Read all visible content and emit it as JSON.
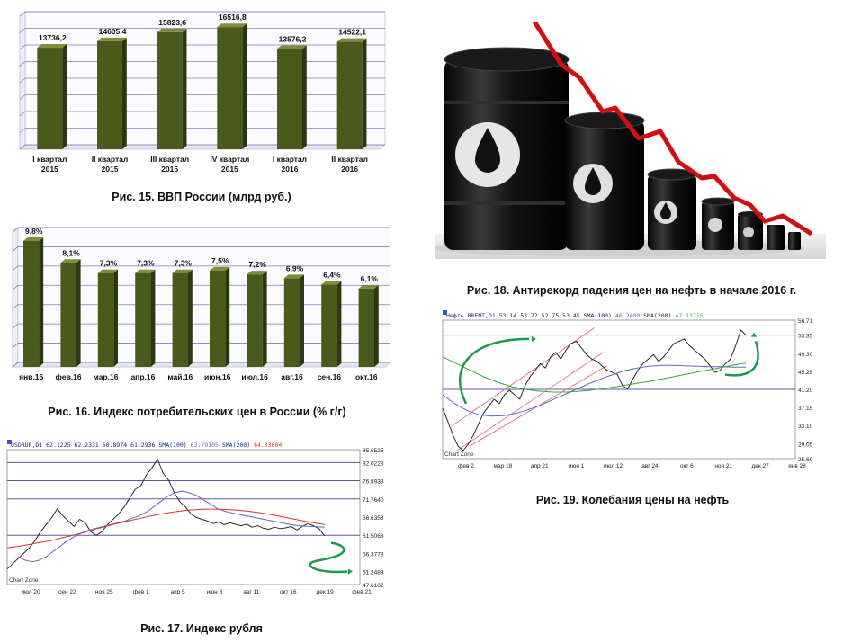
{
  "captions": {
    "fig15": "Рис. 15. ВВП России (млрд руб.)",
    "fig16": "Рис. 16. Индекс потребительских цен в России (% г/г)",
    "fig17": "Рис. 17. Индекс рубля",
    "fig18": "Рис. 18. Антирекорд падения цен на нефть в начале 2016 г.",
    "fig19": "Рис. 19. Колебания цены на нефть"
  },
  "colors": {
    "bar": "#4a5a1c",
    "bar_light": "#7d8f3a",
    "grid": "#5b57a8",
    "price": "#2a2a2a",
    "sma100": "#5b6ac8",
    "sma200_fig17": "#d23a2a",
    "sma200_fig19": "#39a83a",
    "arrow": "#1f9a4a",
    "red_line": "#d01010",
    "channel": "#e07080"
  },
  "chart_data": [
    {
      "id": "fig15",
      "type": "bar",
      "categories": [
        [
          "I квартал",
          "2015"
        ],
        [
          "II квартал",
          "2015"
        ],
        [
          "III квартал",
          "2015"
        ],
        [
          "IV квартал",
          "2015"
        ],
        [
          "I квартал",
          "2016"
        ],
        [
          "II квартал",
          "2016"
        ]
      ],
      "values": [
        13736.2,
        14605.4,
        15823.6,
        16516.8,
        13576.2,
        14522.1
      ],
      "labels": [
        "13736,2",
        "14605,4",
        "15823,6",
        "16516,8",
        "13576,2",
        "14522,1"
      ],
      "ylim": [
        0,
        18000
      ]
    },
    {
      "id": "fig16",
      "type": "bar",
      "categories": [
        "янв.16",
        "фев.16",
        "мар.16",
        "апр.16",
        "май.16",
        "июн.16",
        "июл.16",
        "авг.16",
        "сен.16",
        "окт.16"
      ],
      "values": [
        9.8,
        8.1,
        7.3,
        7.3,
        7.3,
        7.5,
        7.2,
        6.9,
        6.4,
        6.1
      ],
      "labels": [
        "9,8%",
        "8,1%",
        "7,3%",
        "7,3%",
        "7,3%",
        "7,5%",
        "7,2%",
        "6,9%",
        "6,4%",
        "6,1%"
      ],
      "ylim": [
        0,
        10.5
      ]
    },
    {
      "id": "fig17",
      "type": "line",
      "header": {
        "symbol": "USDRUR,D1",
        "ohlc": [
          "62.1225",
          "62.2331",
          "60.8974",
          "61.2936"
        ],
        "sma100_label": "SMA(100)",
        "sma100_value": "63.79105",
        "sma200_label": "SMA(200)",
        "sma200_value": "64.33004"
      },
      "y_ticks": [
        85.6525,
        82.0228,
        76.8938,
        71.764,
        66.6358,
        61.5068,
        56.3778,
        51.2488,
        47.6182
      ],
      "y_tick_labels": [
        "85.6525",
        "82.0228",
        "76.8938",
        "71.7640",
        "66.6358",
        "61.5068",
        "56.3778",
        "51.2488",
        "47.6182"
      ],
      "ylim": [
        47.6182,
        85.6525
      ],
      "x_tick_labels": [
        "июл 20",
        "сен 22",
        "ноя 25",
        "фев 1",
        "апр 5",
        "июн 8",
        "авг 11",
        "окт 16",
        "дек 19",
        "фев 21"
      ],
      "watermark": "Chart Zone",
      "series": [
        {
          "name": "USDRUR,D1",
          "values": [
            52,
            53.5,
            55,
            56.5,
            58,
            60,
            62.5,
            64.5,
            66.5,
            69,
            67,
            65.5,
            64,
            66,
            65,
            62.5,
            61.5,
            62.5,
            64.5,
            66,
            67.5,
            69.5,
            72,
            74.5,
            75.5,
            78.5,
            80.5,
            83,
            79,
            77,
            73.5,
            71,
            69.5,
            67.5,
            66.5,
            66,
            65.5,
            64.8,
            65.2,
            64.5,
            65,
            64.6,
            64.2,
            64.6,
            63.8,
            64.2,
            63.5,
            63.2,
            63.8,
            63.4,
            63.6,
            64,
            63,
            64,
            64.8,
            64.2,
            63.4,
            61.3
          ]
        },
        {
          "name": "SMA(100)",
          "values": [
            55.5,
            54.5,
            54,
            54.5,
            55.5,
            57,
            58.5,
            60,
            61.2,
            62.2,
            63,
            63.5,
            64,
            64.5,
            65,
            65.5,
            66.3,
            67,
            68,
            69.5,
            71,
            72.5,
            73.5,
            74,
            73.5,
            72.8,
            71.5,
            70.3,
            69,
            68.3,
            67.8,
            67.4,
            67,
            66.6,
            66.2,
            65.8,
            65.4,
            65,
            64.6,
            64.3,
            64.1,
            64,
            63.9,
            63.8
          ]
        },
        {
          "name": "SMA(200)",
          "values": [
            58,
            58.4,
            58.9,
            59.5,
            60,
            60.8,
            61.5,
            62.3,
            63.2,
            64,
            64.8,
            65.5,
            66.2,
            66.9,
            67.5,
            68,
            68.4,
            68.7,
            68.9,
            68.9,
            68.8,
            68.6,
            68.3,
            67.9,
            67.4,
            66.8,
            66.2,
            65.6,
            65,
            64.5
          ]
        }
      ]
    },
    {
      "id": "fig19",
      "type": "line",
      "header": {
        "symbol": "Нефть BRENT,D1",
        "ohlc": [
          "53.14",
          "53.72",
          "52.75",
          "53.45"
        ],
        "sma100_label": "SMA(100)",
        "sma100_value": "46.2409",
        "sma200_label": "SMA(200)",
        "sma200_value": "47.13215"
      },
      "y_ticks": [
        56.71,
        53.35,
        49.3,
        45.25,
        41.2,
        37.15,
        33.1,
        29.05,
        25.69
      ],
      "y_tick_labels": [
        "56.71",
        "53.35",
        "49.30",
        "45.25",
        "41.20",
        "37.15",
        "33.10",
        "29.05",
        "25.69"
      ],
      "ylim": [
        25.69,
        56.71
      ],
      "x_tick_labels": [
        "фев 2",
        "мар 18",
        "апр 21",
        "июн 1",
        "июл 12",
        "авг 24",
        "окт 6",
        "ноя 21",
        "дек 27",
        "янв 28"
      ],
      "watermark": "Chart Zone",
      "series": [
        {
          "name": "Нефть BRENT,D1",
          "values": [
            37,
            34,
            31,
            28.5,
            27.5,
            29,
            31,
            33.5,
            36,
            37.5,
            39,
            38,
            40,
            41,
            40,
            39,
            42,
            44,
            45.5,
            47,
            46,
            48.5,
            49.5,
            48,
            50,
            51.5,
            52,
            50.5,
            49,
            48,
            47.5,
            46.5,
            45.5,
            45,
            44.5,
            42,
            41.3,
            43.5,
            45.5,
            47,
            48,
            49,
            47.5,
            48.5,
            50,
            51.5,
            52,
            52.5,
            51,
            50,
            49,
            48,
            46.5,
            45,
            45.5,
            47,
            48,
            51,
            54.5,
            53.4
          ]
        },
        {
          "name": "SMA(100)",
          "values": [
            40,
            38,
            36.5,
            35.5,
            35.2,
            35.3,
            35.8,
            36.6,
            37.6,
            38.8,
            40,
            41.2,
            42.4,
            43.5,
            44.5,
            45.4,
            46,
            46.4,
            46.6,
            46.6,
            46.5,
            46.4,
            46.3,
            46.3,
            46.2,
            46.2
          ]
        },
        {
          "name": "SMA(200)",
          "values": [
            48.5,
            47,
            45.5,
            44,
            42.8,
            41.8,
            41.2,
            40.8,
            40.6,
            40.6,
            40.8,
            41.1,
            41.5,
            42,
            42.5,
            43,
            43.6,
            44.2,
            44.8,
            45.4,
            46,
            46.6,
            47.1
          ]
        }
      ]
    }
  ]
}
